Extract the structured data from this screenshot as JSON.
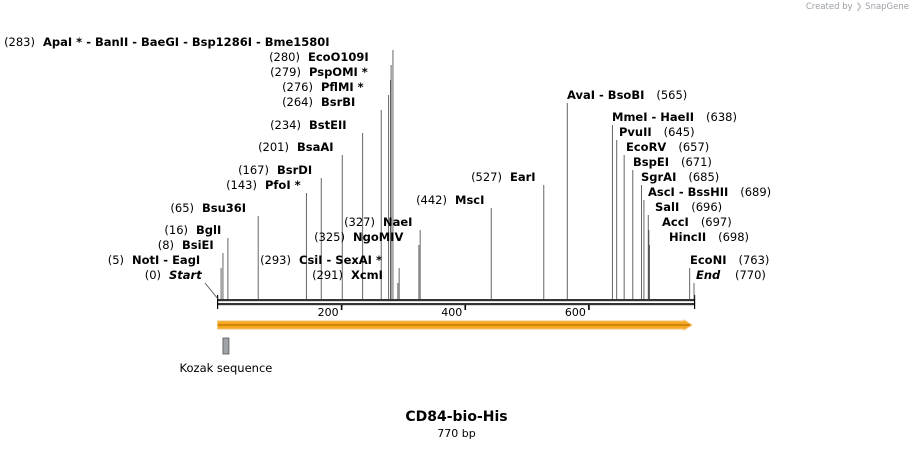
{
  "credit": {
    "prefix": "Created by",
    "brand": "SnapGene"
  },
  "title": "CD84-bio-His",
  "length_label": "770 bp",
  "colors": {
    "backbone": "#333333",
    "feature_fill": "#f7a823",
    "feature_stroke": "#c47a00",
    "kozak": "#a0a3a8",
    "leader": "#555555"
  },
  "sequence": {
    "length": 770,
    "start_label": "Start",
    "start_pos": "(0)",
    "end_label": "End",
    "end_pos": "(770)",
    "ticks": [
      200,
      400,
      600
    ]
  },
  "features": [
    {
      "name": "orf-arrow",
      "start": 1,
      "end": 770,
      "type": "arrow"
    },
    {
      "name": "Kozak sequence",
      "start": 8,
      "end": 17,
      "type": "box"
    }
  ],
  "sites": [
    {
      "text": "ApaI * - BanII - BaeGI - Bsp1286I - Bme1580I",
      "pos": "(283)",
      "bp": 283,
      "side": "left"
    },
    {
      "text": "EcoO109I",
      "pos": "(280)",
      "bp": 280,
      "side": "left"
    },
    {
      "text": "PspOMI *",
      "pos": "(279)",
      "bp": 279,
      "side": "left"
    },
    {
      "text": "PflMI *",
      "pos": "(276)",
      "bp": 276,
      "side": "left"
    },
    {
      "text": "BsrBI",
      "pos": "(264)",
      "bp": 264,
      "side": "left"
    },
    {
      "text": "BstEII",
      "pos": "(234)",
      "bp": 234,
      "side": "left"
    },
    {
      "text": "BsaAI",
      "pos": "(201)",
      "bp": 201,
      "side": "left"
    },
    {
      "text": "BsrDI",
      "pos": "(167)",
      "bp": 167,
      "side": "left"
    },
    {
      "text": "PfoI *",
      "pos": "(143)",
      "bp": 143,
      "side": "left"
    },
    {
      "text": "Bsu36I",
      "pos": "(65)",
      "bp": 65,
      "side": "left"
    },
    {
      "text": "BglI",
      "pos": "(16)",
      "bp": 16,
      "side": "left"
    },
    {
      "text": "BsiEI",
      "pos": "(8)",
      "bp": 8,
      "side": "left"
    },
    {
      "text": "NotI - EagI",
      "pos": "(5)",
      "bp": 5,
      "side": "left"
    },
    {
      "text": "NaeI",
      "pos": "(327)",
      "bp": 327,
      "side": "left"
    },
    {
      "text": "NgoMIV",
      "pos": "(325)",
      "bp": 325,
      "side": "left"
    },
    {
      "text": "CsiI - SexAI *",
      "pos": "(293)",
      "bp": 293,
      "side": "left"
    },
    {
      "text": "XcmI",
      "pos": "(291)",
      "bp": 291,
      "side": "left"
    },
    {
      "text": "MscI",
      "pos": "(442)",
      "bp": 442,
      "side": "left"
    },
    {
      "text": "EarI",
      "pos": "(527)",
      "bp": 527,
      "side": "left"
    },
    {
      "text": "AvaI - BsoBI",
      "pos": "(565)",
      "bp": 565,
      "side": "right"
    },
    {
      "text": "MmeI - HaeII",
      "pos": "(638)",
      "bp": 638,
      "side": "right"
    },
    {
      "text": "PvuII",
      "pos": "(645)",
      "bp": 645,
      "side": "right"
    },
    {
      "text": "EcoRV",
      "pos": "(657)",
      "bp": 657,
      "side": "right"
    },
    {
      "text": "BspEI",
      "pos": "(671)",
      "bp": 671,
      "side": "right"
    },
    {
      "text": "SgrAI",
      "pos": "(685)",
      "bp": 685,
      "side": "right"
    },
    {
      "text": "AscI - BssHII",
      "pos": "(689)",
      "bp": 689,
      "side": "right"
    },
    {
      "text": "SalI",
      "pos": "(696)",
      "bp": 696,
      "side": "right"
    },
    {
      "text": "AccI",
      "pos": "(697)",
      "bp": 697,
      "side": "right"
    },
    {
      "text": "HincII",
      "pos": "(698)",
      "bp": 698,
      "side": "right"
    },
    {
      "text": "EcoNI",
      "pos": "(763)",
      "bp": 763,
      "side": "right"
    }
  ]
}
